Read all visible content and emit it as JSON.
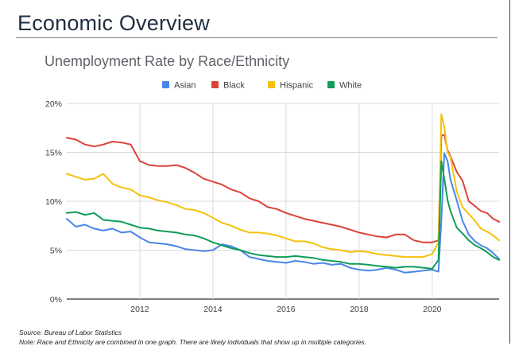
{
  "page": {
    "title": "Economic Overview",
    "source": "Source: Bureau of Labor Statistics",
    "footnote": "Note: Race and Ethnicity are combined in one graph. There are likely individuals that show up in multiple categories."
  },
  "chart_data": {
    "type": "line",
    "title": "Unemployment Rate by Race/Ethnicity",
    "xlabel": "",
    "ylabel": "",
    "xlim": [
      2010.0,
      2021.83
    ],
    "ylim": [
      0,
      20
    ],
    "x_ticks": [
      2012,
      2014,
      2016,
      2018,
      2020
    ],
    "x_tick_labels": [
      "2012",
      "2014",
      "2016",
      "2018",
      "2020"
    ],
    "y_ticks": [
      0,
      5,
      10,
      15,
      20
    ],
    "y_tick_labels": [
      "0%",
      "5%",
      "10%",
      "15%",
      "20%"
    ],
    "grid": "vertical and horizontal",
    "legend": "top",
    "series": [
      {
        "name": "Asian",
        "color": "#4a86e8",
        "x": [
          2010.0,
          2010.25,
          2010.5,
          2010.75,
          2011.0,
          2011.25,
          2011.5,
          2011.75,
          2012.0,
          2012.25,
          2012.5,
          2012.75,
          2013.0,
          2013.25,
          2013.5,
          2013.75,
          2014.0,
          2014.25,
          2014.5,
          2014.75,
          2015.0,
          2015.25,
          2015.5,
          2015.75,
          2016.0,
          2016.25,
          2016.5,
          2016.75,
          2017.0,
          2017.25,
          2017.5,
          2017.75,
          2018.0,
          2018.25,
          2018.5,
          2018.75,
          2019.0,
          2019.25,
          2019.5,
          2019.75,
          2020.0,
          2020.17,
          2020.25,
          2020.33,
          2020.42,
          2020.5,
          2020.67,
          2020.83,
          2021.0,
          2021.17,
          2021.33,
          2021.5,
          2021.67,
          2021.83
        ],
        "values": [
          8.2,
          7.4,
          7.6,
          7.2,
          7.0,
          7.2,
          6.8,
          6.9,
          6.3,
          5.8,
          5.7,
          5.6,
          5.4,
          5.1,
          5.0,
          4.9,
          5.0,
          5.6,
          5.4,
          5.0,
          4.3,
          4.1,
          3.9,
          3.8,
          3.7,
          3.9,
          3.8,
          3.6,
          3.7,
          3.5,
          3.6,
          3.2,
          3.0,
          2.9,
          3.0,
          3.2,
          3.0,
          2.7,
          2.8,
          2.9,
          3.0,
          2.8,
          8.0,
          14.9,
          14.1,
          12.2,
          10.1,
          8.0,
          6.6,
          5.9,
          5.5,
          5.2,
          4.7,
          4.1
        ]
      },
      {
        "name": "Black",
        "color": "#db4437",
        "x": [
          2010.0,
          2010.25,
          2010.5,
          2010.75,
          2011.0,
          2011.25,
          2011.5,
          2011.75,
          2012.0,
          2012.25,
          2012.5,
          2012.75,
          2013.0,
          2013.25,
          2013.5,
          2013.75,
          2014.0,
          2014.25,
          2014.5,
          2014.75,
          2015.0,
          2015.25,
          2015.5,
          2015.75,
          2016.0,
          2016.25,
          2016.5,
          2016.75,
          2017.0,
          2017.25,
          2017.5,
          2017.75,
          2018.0,
          2018.25,
          2018.5,
          2018.75,
          2019.0,
          2019.25,
          2019.5,
          2019.75,
          2020.0,
          2020.17,
          2020.25,
          2020.33,
          2020.42,
          2020.5,
          2020.67,
          2020.83,
          2021.0,
          2021.17,
          2021.33,
          2021.5,
          2021.67,
          2021.83
        ],
        "values": [
          16.5,
          16.3,
          15.8,
          15.6,
          15.8,
          16.1,
          16.0,
          15.8,
          14.1,
          13.7,
          13.6,
          13.6,
          13.7,
          13.4,
          12.9,
          12.3,
          12.0,
          11.7,
          11.2,
          10.9,
          10.3,
          10.0,
          9.4,
          9.2,
          8.8,
          8.5,
          8.2,
          8.0,
          7.8,
          7.6,
          7.4,
          7.1,
          6.8,
          6.6,
          6.4,
          6.3,
          6.6,
          6.6,
          6.0,
          5.8,
          5.8,
          6.0,
          16.7,
          16.8,
          15.2,
          14.6,
          13.0,
          12.1,
          10.0,
          9.5,
          9.0,
          8.8,
          8.2,
          7.9
        ]
      },
      {
        "name": "Hispanic",
        "color": "#f4c20d",
        "x": [
          2010.0,
          2010.25,
          2010.5,
          2010.75,
          2011.0,
          2011.25,
          2011.5,
          2011.75,
          2012.0,
          2012.25,
          2012.5,
          2012.75,
          2013.0,
          2013.25,
          2013.5,
          2013.75,
          2014.0,
          2014.25,
          2014.5,
          2014.75,
          2015.0,
          2015.25,
          2015.5,
          2015.75,
          2016.0,
          2016.25,
          2016.5,
          2016.75,
          2017.0,
          2017.25,
          2017.5,
          2017.75,
          2018.0,
          2018.25,
          2018.5,
          2018.75,
          2019.0,
          2019.25,
          2019.5,
          2019.75,
          2020.0,
          2020.17,
          2020.25,
          2020.33,
          2020.42,
          2020.5,
          2020.67,
          2020.83,
          2021.0,
          2021.17,
          2021.33,
          2021.5,
          2021.67,
          2021.83
        ],
        "values": [
          12.8,
          12.5,
          12.2,
          12.3,
          12.8,
          11.8,
          11.4,
          11.2,
          10.6,
          10.4,
          10.1,
          9.9,
          9.6,
          9.2,
          9.1,
          8.8,
          8.3,
          7.8,
          7.5,
          7.1,
          6.8,
          6.8,
          6.7,
          6.5,
          6.2,
          5.9,
          5.9,
          5.7,
          5.3,
          5.1,
          5.0,
          4.8,
          4.9,
          4.8,
          4.6,
          4.5,
          4.4,
          4.3,
          4.3,
          4.3,
          4.6,
          5.8,
          18.9,
          17.6,
          15.0,
          14.5,
          11.0,
          9.4,
          8.7,
          8.0,
          7.2,
          6.9,
          6.5,
          6.0
        ]
      },
      {
        "name": "White",
        "color": "#0f9d58",
        "x": [
          2010.0,
          2010.25,
          2010.5,
          2010.75,
          2011.0,
          2011.25,
          2011.5,
          2011.75,
          2012.0,
          2012.25,
          2012.5,
          2012.75,
          2013.0,
          2013.25,
          2013.5,
          2013.75,
          2014.0,
          2014.25,
          2014.5,
          2014.75,
          2015.0,
          2015.25,
          2015.5,
          2015.75,
          2016.0,
          2016.25,
          2016.5,
          2016.75,
          2017.0,
          2017.25,
          2017.5,
          2017.75,
          2018.0,
          2018.25,
          2018.5,
          2018.75,
          2019.0,
          2019.25,
          2019.5,
          2019.75,
          2020.0,
          2020.17,
          2020.25,
          2020.33,
          2020.42,
          2020.5,
          2020.67,
          2020.83,
          2021.0,
          2021.17,
          2021.33,
          2021.5,
          2021.67,
          2021.83
        ],
        "values": [
          8.8,
          8.9,
          8.6,
          8.8,
          8.1,
          8.0,
          7.9,
          7.6,
          7.3,
          7.2,
          7.0,
          6.9,
          6.8,
          6.6,
          6.5,
          6.2,
          5.8,
          5.5,
          5.2,
          5.0,
          4.7,
          4.5,
          4.4,
          4.3,
          4.3,
          4.4,
          4.3,
          4.2,
          4.0,
          3.9,
          3.8,
          3.6,
          3.6,
          3.5,
          3.4,
          3.3,
          3.2,
          3.3,
          3.3,
          3.2,
          3.1,
          4.0,
          14.1,
          12.3,
          10.1,
          9.0,
          7.3,
          6.7,
          6.0,
          5.5,
          5.2,
          4.8,
          4.3,
          4.0
        ]
      }
    ]
  }
}
